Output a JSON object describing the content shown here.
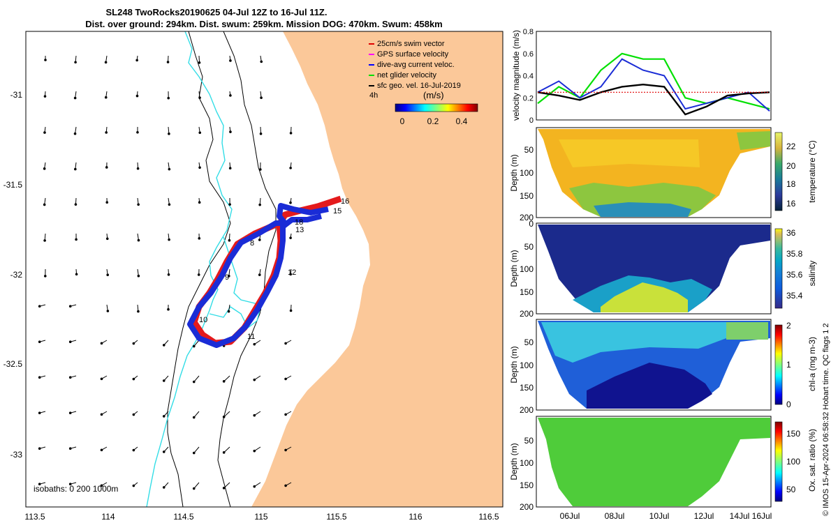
{
  "header": {
    "title_line1": "SL248 TwoRocks20190625 04-Jul 12Z to 16-Jul 11Z.",
    "title_line2": "Dist. over ground: 294km. Dist. swum: 259km. Mission DOG: 470km. Swum: 458km"
  },
  "map": {
    "legend": [
      {
        "label": "25cm/s swim vector",
        "color": "#e00000"
      },
      {
        "label": "GPS surface velocity",
        "color": "#ff00ff"
      },
      {
        "label": "dive-avg current veloc.",
        "color": "#0000ff"
      },
      {
        "label": "net glider velocity",
        "color": "#00e000"
      },
      {
        "label": "sfc geo. vel. 16-Jul-2019",
        "color": "#000000"
      }
    ],
    "scale_label": "4h",
    "colorbar_title": "(m/s)",
    "colorbar_ticks": [
      "0",
      "0.2",
      "0.4"
    ],
    "isobath_label": "isobaths: 0   200  1000m",
    "x_ticks": [
      "113.5",
      "114",
      "114.5",
      "115",
      "115.5",
      "116",
      "116.5"
    ],
    "y_ticks": [
      "-31",
      "-31.5",
      "-32",
      "-32.5",
      "-33"
    ],
    "track_day_labels": [
      "8",
      "9",
      "10",
      "11",
      "12",
      "13",
      "16",
      "18",
      "15"
    ]
  },
  "panels": {
    "velocity_ylabel": "velocity magnitude (m/s)",
    "velocity_ticks": [
      "0",
      "0.2",
      "0.4",
      "0.6",
      "0.8"
    ],
    "depth_ylabel": "Depth (m)",
    "depth_ticks": [
      "50",
      "100",
      "150",
      "200"
    ],
    "depth_ticks_top": [
      "0",
      "50",
      "100",
      "150",
      "200"
    ],
    "temperature_label": "temperature (°C)",
    "temperature_ticks": [
      "16",
      "18",
      "20",
      "22"
    ],
    "salinity_label": "salinity",
    "salinity_ticks": [
      "35.4",
      "35.6",
      "35.8",
      "36"
    ],
    "chla_label": "chl-a (mg m-3)",
    "chla_ticks": [
      "0",
      "1",
      "2"
    ],
    "oxy_label": "Ox. sat. ratio (%)",
    "oxy_ticks": [
      "50",
      "100",
      "150"
    ],
    "x_dates": [
      "06Jul",
      "08Jul",
      "10Jul",
      "12Jul",
      "14Jul",
      "16Jul"
    ],
    "footer_note": "© IMOS 15-Apr-2024 06:58:32 Hobart time. QC flags 1  2"
  },
  "chart_data": {
    "type": "line",
    "title": "velocity magnitude (m/s)",
    "x": [
      "05Jul",
      "06Jul",
      "07Jul",
      "08Jul",
      "09Jul",
      "10Jul",
      "11Jul",
      "12Jul",
      "13Jul",
      "14Jul",
      "15Jul",
      "16Jul"
    ],
    "series": [
      {
        "name": "25cm/s swim vector",
        "values": [
          0.25,
          0.25,
          0.25,
          0.25,
          0.25,
          0.25,
          0.25,
          0.25,
          0.25,
          0.25,
          0.25,
          0.25
        ]
      },
      {
        "name": "dive-avg current veloc.",
        "values": [
          0.25,
          0.35,
          0.2,
          0.3,
          0.55,
          0.45,
          0.4,
          0.1,
          0.15,
          0.2,
          0.25,
          0.08
        ]
      },
      {
        "name": "net glider velocity",
        "values": [
          0.15,
          0.3,
          0.2,
          0.45,
          0.6,
          0.55,
          0.55,
          0.2,
          0.15,
          0.2,
          0.15,
          0.1
        ]
      },
      {
        "name": "sfc geo. vel.",
        "values": [
          0.25,
          0.22,
          0.18,
          0.25,
          0.3,
          0.32,
          0.3,
          0.05,
          0.12,
          0.22,
          0.24,
          0.25
        ]
      }
    ],
    "ylim": [
      0,
      0.8
    ],
    "ylabel": "velocity magnitude (m/s)"
  }
}
